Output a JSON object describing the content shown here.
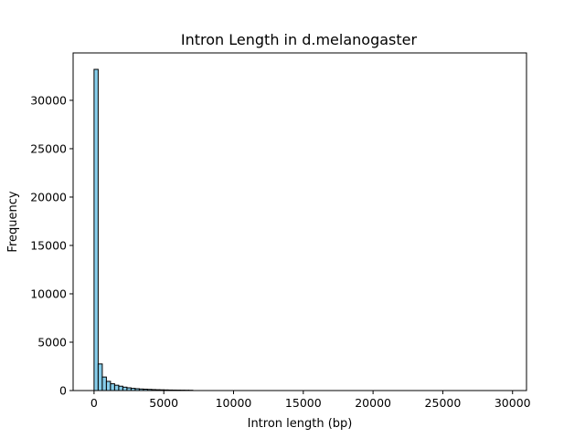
{
  "chart_data": {
    "type": "bar",
    "title": "Intron Length in d.melanogaster",
    "xlabel": "Intron length (bp)",
    "ylabel": "Frequency",
    "xlim": [
      -1500,
      31000
    ],
    "ylim": [
      0,
      34900
    ],
    "bar_color": "#87ceeb",
    "edge_color": "#000000",
    "x_ticks": [
      0,
      5000,
      10000,
      15000,
      20000,
      25000,
      30000
    ],
    "x_tick_labels": [
      "0",
      "5000",
      "10000",
      "15000",
      "20000",
      "25000",
      "30000"
    ],
    "y_ticks": [
      0,
      5000,
      10000,
      15000,
      20000,
      25000,
      30000
    ],
    "y_tick_labels": [
      "0",
      "5000",
      "10000",
      "15000",
      "20000",
      "25000",
      "30000"
    ],
    "bins": {
      "x_start": 0,
      "bin_width": 295,
      "values": [
        33200,
        2750,
        1400,
        950,
        700,
        550,
        450,
        350,
        280,
        230,
        190,
        160,
        140,
        120,
        100,
        85,
        75,
        65,
        55,
        50,
        45,
        40,
        35,
        30
      ]
    }
  }
}
